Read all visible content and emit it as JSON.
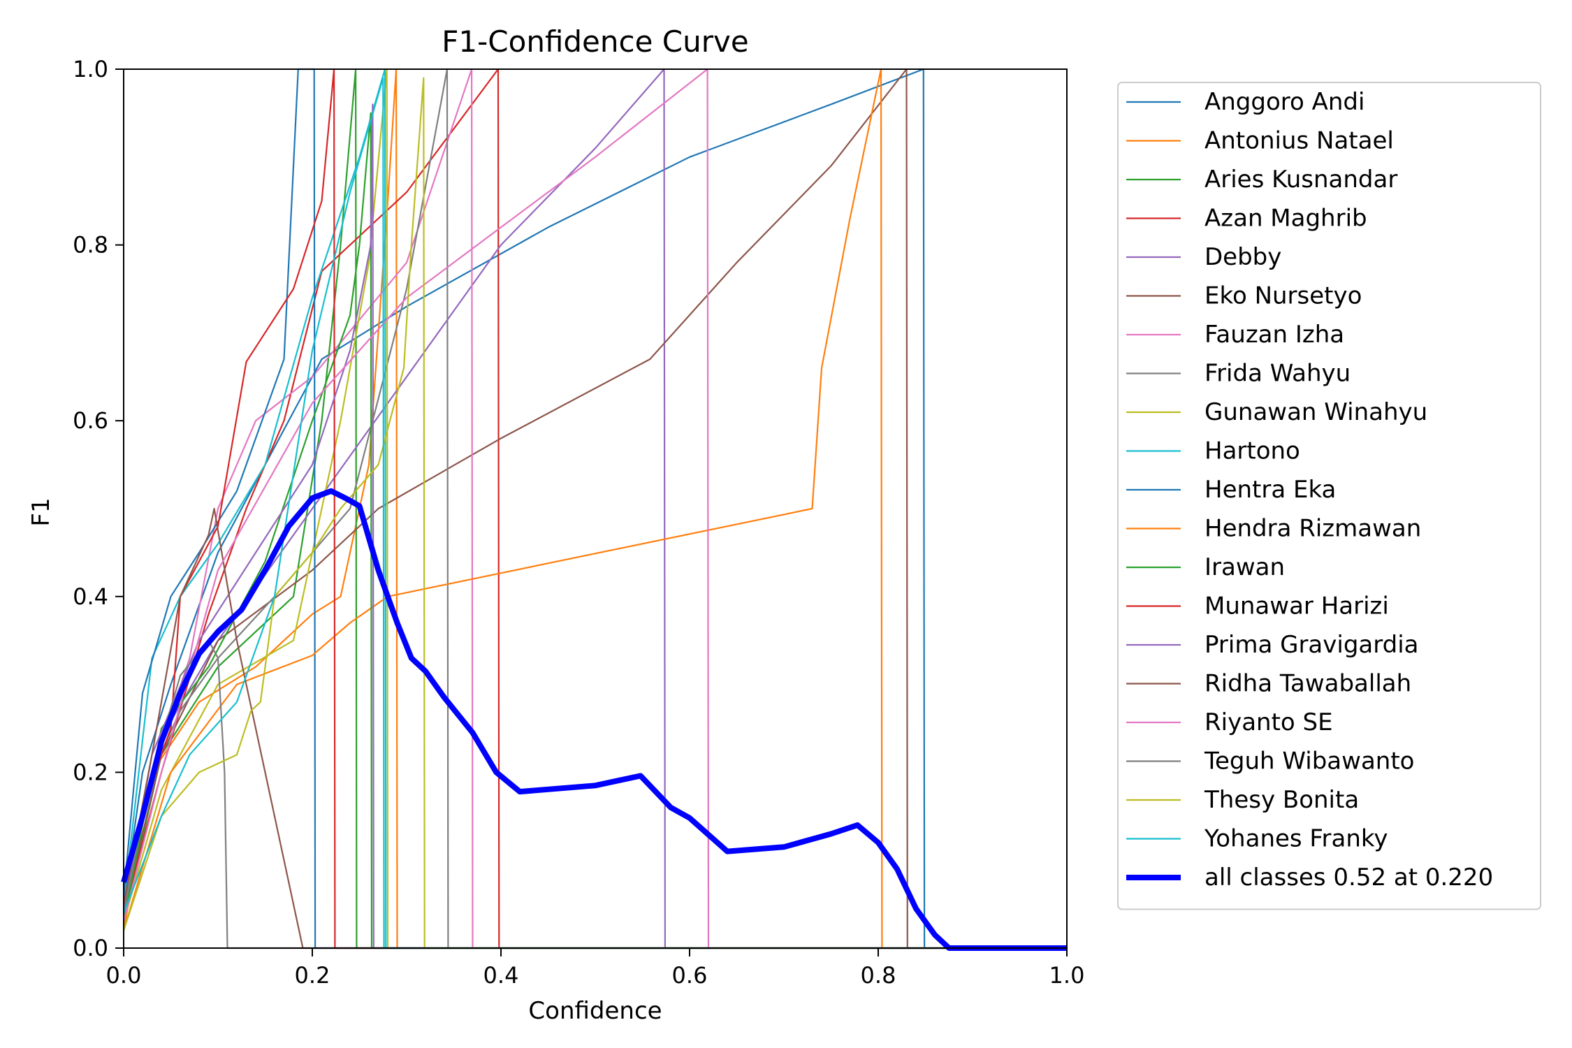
{
  "chart_data": {
    "type": "line",
    "title": "F1-Confidence Curve",
    "xlabel": "Confidence",
    "ylabel": "F1",
    "xlim": [
      0.0,
      1.0
    ],
    "ylim": [
      0.0,
      1.0
    ],
    "xticks": [
      "0.0",
      "0.2",
      "0.4",
      "0.6",
      "0.8",
      "1.0"
    ],
    "yticks": [
      "0.0",
      "0.2",
      "0.4",
      "0.6",
      "0.8",
      "1.0"
    ],
    "grid": false,
    "legend_position": "outside-right",
    "series": [
      {
        "name": "Anggoro Andi",
        "color": "#1f77b4",
        "width": 1,
        "points": [
          [
            0,
            0.05
          ],
          [
            0.02,
            0.2
          ],
          [
            0.05,
            0.3
          ],
          [
            0.1,
            0.45
          ],
          [
            0.15,
            0.55
          ],
          [
            0.21,
            0.67
          ],
          [
            0.3,
            0.73
          ],
          [
            0.45,
            0.82
          ],
          [
            0.6,
            0.9
          ],
          [
            0.75,
            0.96
          ],
          [
            0.848,
            1.0
          ],
          [
            0.849,
            0
          ],
          [
            1,
            0
          ]
        ]
      },
      {
        "name": "Antonius Natael",
        "color": "#ff7f0e",
        "width": 1,
        "points": [
          [
            0,
            0.02
          ],
          [
            0.03,
            0.2
          ],
          [
            0.08,
            0.28
          ],
          [
            0.14,
            0.32
          ],
          [
            0.2,
            0.38
          ],
          [
            0.23,
            0.4
          ],
          [
            0.26,
            0.55
          ],
          [
            0.28,
            0.85
          ],
          [
            0.289,
            1.0
          ],
          [
            0.29,
            0
          ],
          [
            1,
            0
          ]
        ]
      },
      {
        "name": "Aries Kusnandar",
        "color": "#2ca02c",
        "width": 1,
        "points": [
          [
            0,
            0.03
          ],
          [
            0.04,
            0.22
          ],
          [
            0.1,
            0.32
          ],
          [
            0.18,
            0.4
          ],
          [
            0.21,
            0.6
          ],
          [
            0.23,
            0.8
          ],
          [
            0.246,
            1.0
          ],
          [
            0.247,
            0
          ],
          [
            1,
            0
          ]
        ]
      },
      {
        "name": "Azan Maghrib",
        "color": "#d62728",
        "width": 1,
        "points": [
          [
            0,
            0.04
          ],
          [
            0.04,
            0.2
          ],
          [
            0.09,
            0.38
          ],
          [
            0.13,
            0.5
          ],
          [
            0.17,
            0.6
          ],
          [
            0.21,
            0.77
          ],
          [
            0.3,
            0.86
          ],
          [
            0.397,
            1.0
          ],
          [
            0.398,
            0
          ],
          [
            1,
            0
          ]
        ]
      },
      {
        "name": "Debby",
        "color": "#9467bd",
        "width": 1,
        "points": [
          [
            0,
            0.05
          ],
          [
            0.04,
            0.24
          ],
          [
            0.1,
            0.35
          ],
          [
            0.2,
            0.5
          ],
          [
            0.3,
            0.65
          ],
          [
            0.4,
            0.8
          ],
          [
            0.5,
            0.91
          ],
          [
            0.573,
            1.0
          ],
          [
            0.574,
            0
          ],
          [
            1,
            0
          ]
        ]
      },
      {
        "name": "Eko Nursetyo",
        "color": "#8c564b",
        "width": 1,
        "points": [
          [
            0,
            0.04
          ],
          [
            0.04,
            0.22
          ],
          [
            0.1,
            0.35
          ],
          [
            0.2,
            0.43
          ],
          [
            0.27,
            0.5
          ],
          [
            0.4,
            0.58
          ],
          [
            0.558,
            0.67
          ],
          [
            0.65,
            0.78
          ],
          [
            0.75,
            0.89
          ],
          [
            0.83,
            1.0
          ],
          [
            0.831,
            0
          ],
          [
            1,
            0
          ]
        ]
      },
      {
        "name": "Fauzan Izha",
        "color": "#e377c2",
        "width": 1,
        "points": [
          [
            0,
            0.04
          ],
          [
            0.03,
            0.2
          ],
          [
            0.07,
            0.33
          ],
          [
            0.1,
            0.5
          ],
          [
            0.14,
            0.6
          ],
          [
            0.2,
            0.65
          ],
          [
            0.3,
            0.78
          ],
          [
            0.369,
            1.0
          ],
          [
            0.37,
            0
          ],
          [
            1,
            0
          ]
        ]
      },
      {
        "name": "Frida Wahyu",
        "color": "#7f7f7f",
        "width": 1,
        "points": [
          [
            0,
            0.04
          ],
          [
            0.03,
            0.2
          ],
          [
            0.06,
            0.27
          ],
          [
            0.1,
            0.33
          ],
          [
            0.16,
            0.4
          ],
          [
            0.24,
            0.5
          ],
          [
            0.3,
            0.75
          ],
          [
            0.343,
            1.0
          ],
          [
            0.344,
            0
          ],
          [
            1,
            0
          ]
        ]
      },
      {
        "name": "Gunawan Winahyu",
        "color": "#bcbd22",
        "width": 1,
        "points": [
          [
            0,
            0.03
          ],
          [
            0.04,
            0.18
          ],
          [
            0.1,
            0.3
          ],
          [
            0.18,
            0.35
          ],
          [
            0.23,
            0.6
          ],
          [
            0.26,
            0.78
          ],
          [
            0.279,
            1.0
          ],
          [
            0.28,
            0
          ],
          [
            1,
            0
          ]
        ]
      },
      {
        "name": "Hartono",
        "color": "#17becf",
        "width": 1,
        "points": [
          [
            0,
            0.05
          ],
          [
            0.03,
            0.33
          ],
          [
            0.06,
            0.4
          ],
          [
            0.1,
            0.46
          ],
          [
            0.15,
            0.55
          ],
          [
            0.2,
            0.74
          ],
          [
            0.25,
            0.9
          ],
          [
            0.277,
            1.0
          ],
          [
            0.278,
            0
          ],
          [
            1,
            0
          ]
        ]
      },
      {
        "name": "Hentra Eka",
        "color": "#1f77b4",
        "width": 1,
        "points": [
          [
            0,
            0.06
          ],
          [
            0.02,
            0.29
          ],
          [
            0.05,
            0.4
          ],
          [
            0.08,
            0.45
          ],
          [
            0.12,
            0.52
          ],
          [
            0.17,
            0.67
          ],
          [
            0.185,
            1.0
          ],
          [
            0.202,
            1.0
          ],
          [
            0.203,
            0
          ],
          [
            1,
            0
          ]
        ]
      },
      {
        "name": "Hendra Rizmawan",
        "color": "#ff7f0e",
        "width": 1,
        "points": [
          [
            0,
            0.02
          ],
          [
            0.05,
            0.2
          ],
          [
            0.12,
            0.3
          ],
          [
            0.2,
            0.333
          ],
          [
            0.24,
            0.37
          ],
          [
            0.28,
            0.4
          ],
          [
            0.73,
            0.5
          ],
          [
            0.74,
            0.66
          ],
          [
            0.77,
            0.83
          ],
          [
            0.803,
            1.0
          ],
          [
            0.804,
            0
          ],
          [
            1,
            0
          ]
        ]
      },
      {
        "name": "Irawan",
        "color": "#2ca02c",
        "width": 1,
        "points": [
          [
            0,
            0.03
          ],
          [
            0.04,
            0.25
          ],
          [
            0.09,
            0.32
          ],
          [
            0.15,
            0.44
          ],
          [
            0.2,
            0.6
          ],
          [
            0.24,
            0.72
          ],
          [
            0.25,
            0.8
          ],
          [
            0.262,
            0.95
          ],
          [
            0.263,
            0
          ],
          [
            1,
            0
          ]
        ]
      },
      {
        "name": "Munawar Harizi",
        "color": "#d62728",
        "width": 1,
        "points": [
          [
            0,
            0.04
          ],
          [
            0.02,
            0.16
          ],
          [
            0.05,
            0.25
          ],
          [
            0.06,
            0.4
          ],
          [
            0.1,
            0.48
          ],
          [
            0.13,
            0.667
          ],
          [
            0.18,
            0.75
          ],
          [
            0.21,
            0.85
          ],
          [
            0.223,
            1.0
          ],
          [
            0.224,
            0
          ],
          [
            1,
            0
          ]
        ]
      },
      {
        "name": "Prima Gravigardia",
        "color": "#9467bd",
        "width": 1,
        "points": [
          [
            0,
            0.04
          ],
          [
            0.03,
            0.22
          ],
          [
            0.08,
            0.35
          ],
          [
            0.14,
            0.45
          ],
          [
            0.2,
            0.55
          ],
          [
            0.24,
            0.68
          ],
          [
            0.262,
            0.8
          ],
          [
            0.264,
            0.96
          ],
          [
            0.265,
            0
          ],
          [
            1,
            0
          ]
        ]
      },
      {
        "name": "Ridha Tawaballah",
        "color": "#8c564b",
        "width": 1,
        "points": [
          [
            0,
            0.05
          ],
          [
            0.03,
            0.22
          ],
          [
            0.06,
            0.4
          ],
          [
            0.09,
            0.47
          ],
          [
            0.096,
            0.5
          ],
          [
            0.12,
            0.35
          ],
          [
            0.15,
            0.2
          ],
          [
            0.19,
            0.0
          ],
          [
            1,
            0
          ]
        ]
      },
      {
        "name": "Riyanto SE",
        "color": "#e377c2",
        "width": 1,
        "points": [
          [
            0,
            0.03
          ],
          [
            0.04,
            0.2
          ],
          [
            0.1,
            0.43
          ],
          [
            0.2,
            0.62
          ],
          [
            0.3,
            0.74
          ],
          [
            0.4,
            0.82
          ],
          [
            0.5,
            0.9
          ],
          [
            0.619,
            1.0
          ],
          [
            0.62,
            0
          ],
          [
            1,
            0
          ]
        ]
      },
      {
        "name": "Teguh Wibawanto",
        "color": "#7f7f7f",
        "width": 1,
        "points": [
          [
            0,
            0.04
          ],
          [
            0.03,
            0.2
          ],
          [
            0.06,
            0.31
          ],
          [
            0.09,
            0.35
          ],
          [
            0.1,
            0.33
          ],
          [
            0.107,
            0.2
          ],
          [
            0.11,
            0.0
          ],
          [
            1,
            0
          ]
        ]
      },
      {
        "name": "Thesy Bonita",
        "color": "#bcbd22",
        "width": 1,
        "points": [
          [
            0,
            0.02
          ],
          [
            0.04,
            0.15
          ],
          [
            0.08,
            0.2
          ],
          [
            0.12,
            0.22
          ],
          [
            0.135,
            0.27
          ],
          [
            0.145,
            0.28
          ],
          [
            0.16,
            0.4
          ],
          [
            0.2,
            0.45
          ],
          [
            0.23,
            0.5
          ],
          [
            0.27,
            0.55
          ],
          [
            0.297,
            0.66
          ],
          [
            0.305,
            0.8
          ],
          [
            0.318,
            0.99
          ],
          [
            0.319,
            0
          ],
          [
            1,
            0
          ]
        ]
      },
      {
        "name": "Yohanes Franky",
        "color": "#17becf",
        "width": 1,
        "points": [
          [
            0,
            0.04
          ],
          [
            0.04,
            0.15
          ],
          [
            0.07,
            0.22
          ],
          [
            0.12,
            0.28
          ],
          [
            0.16,
            0.4
          ],
          [
            0.2,
            0.68
          ],
          [
            0.24,
            0.86
          ],
          [
            0.275,
            0.99
          ],
          [
            0.276,
            0
          ],
          [
            1,
            0
          ]
        ]
      },
      {
        "name": "all classes 0.52 at 0.220",
        "color": "#0000ff",
        "width": 4,
        "points": [
          [
            0,
            0.075
          ],
          [
            0.02,
            0.15
          ],
          [
            0.04,
            0.235
          ],
          [
            0.06,
            0.29
          ],
          [
            0.08,
            0.335
          ],
          [
            0.1,
            0.36
          ],
          [
            0.125,
            0.385
          ],
          [
            0.15,
            0.43
          ],
          [
            0.175,
            0.48
          ],
          [
            0.2,
            0.512
          ],
          [
            0.22,
            0.52
          ],
          [
            0.235,
            0.512
          ],
          [
            0.25,
            0.503
          ],
          [
            0.27,
            0.43
          ],
          [
            0.29,
            0.37
          ],
          [
            0.305,
            0.33
          ],
          [
            0.32,
            0.315
          ],
          [
            0.34,
            0.285
          ],
          [
            0.37,
            0.245
          ],
          [
            0.395,
            0.2
          ],
          [
            0.42,
            0.178
          ],
          [
            0.5,
            0.185
          ],
          [
            0.548,
            0.196
          ],
          [
            0.58,
            0.16
          ],
          [
            0.6,
            0.148
          ],
          [
            0.64,
            0.11
          ],
          [
            0.7,
            0.115
          ],
          [
            0.75,
            0.13
          ],
          [
            0.778,
            0.14
          ],
          [
            0.8,
            0.12
          ],
          [
            0.82,
            0.09
          ],
          [
            0.84,
            0.045
          ],
          [
            0.86,
            0.015
          ],
          [
            0.875,
            0.0
          ],
          [
            1,
            0.0
          ]
        ]
      }
    ]
  }
}
